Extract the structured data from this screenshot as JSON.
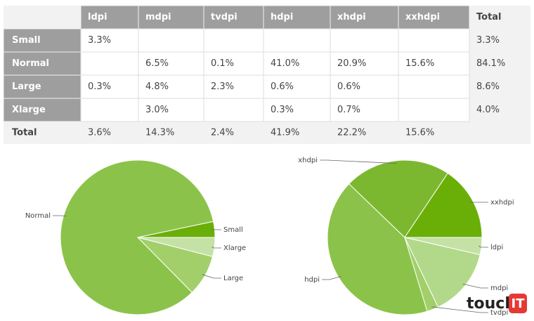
{
  "table": {
    "header": [
      "ldpi",
      "mdpi",
      "tvdpi",
      "hdpi",
      "xhdpi",
      "xxhdpi",
      "Total"
    ],
    "rows": [
      [
        "Small",
        "3.3%",
        null,
        null,
        null,
        null,
        null,
        "3.3%"
      ],
      [
        "Normal",
        null,
        "6.5%",
        "0.1%",
        "41.0%",
        "20.9%",
        "15.6%",
        "84.1%"
      ],
      [
        "Large",
        "0.3%",
        "4.8%",
        "2.3%",
        "0.6%",
        "0.6%",
        null,
        "8.6%"
      ],
      [
        "Xlarge",
        null,
        "3.0%",
        null,
        "0.3%",
        "0.7%",
        null,
        "4.0%"
      ],
      [
        "Total",
        "3.6%",
        "14.3%",
        "2.4%",
        "41.9%",
        "22.2%",
        "15.6%",
        null
      ]
    ]
  },
  "chart_data": [
    {
      "type": "pie",
      "categories": [
        "Xlarge",
        "Large",
        "Normal",
        "Small"
      ],
      "values": [
        4.0,
        8.6,
        84.1,
        3.3
      ],
      "colors": [
        "#c5e1a5",
        "#a2cf6a",
        "#8bc34a",
        "#6aaf08"
      ]
    },
    {
      "type": "pie",
      "categories": [
        "ldpi",
        "mdpi",
        "tvdpi",
        "hdpi",
        "xhdpi",
        "xxhdpi"
      ],
      "values": [
        3.6,
        14.3,
        2.4,
        41.9,
        22.2,
        15.6
      ],
      "colors": [
        "#c5e1a5",
        "#b2d98a",
        "#a2cf6a",
        "#8bc34a",
        "#7cb82f",
        "#6aaf08"
      ]
    }
  ],
  "watermark": {
    "text": "touch",
    "badge": "IT"
  }
}
